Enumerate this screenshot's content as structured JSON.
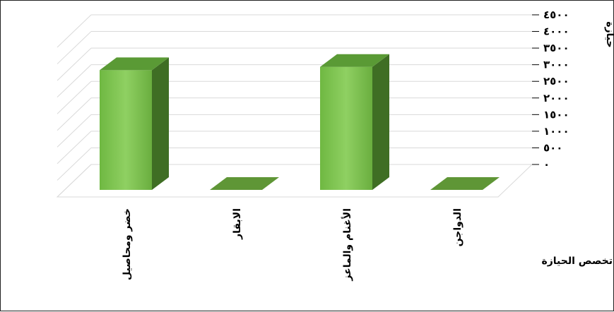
{
  "chart_data": {
    "type": "bar",
    "categories": [
      "خضر ومحاصيل",
      "الابقار",
      "الأغنام والماعز",
      "الدواجن"
    ],
    "values": [
      3600,
      0,
      3700,
      0
    ],
    "ylim": [
      0,
      4500
    ],
    "yticks": [
      0,
      500,
      1000,
      1500,
      2000,
      2500,
      3000,
      3500,
      4000,
      4500
    ],
    "ytick_labels": [
      "٠",
      "٥٠٠",
      "١٠٠٠",
      "١٥٠٠",
      "٢٠٠٠",
      "٢٥٠٠",
      "٣٠٠٠",
      "٣٥٠٠",
      "٤٠٠٠",
      "٤٥٠٠"
    ],
    "ylabel": "حيازة",
    "xlabel": "تخصص الحيازة",
    "grid": true,
    "legend": "none",
    "colors": {
      "bar_front": "#6fb842",
      "bar_front_light": "#8fd062",
      "bar_side": "#3f6e24",
      "bar_top": "#5a9a35",
      "floor": "#5f9636",
      "grid": "#d9d9d9"
    }
  }
}
